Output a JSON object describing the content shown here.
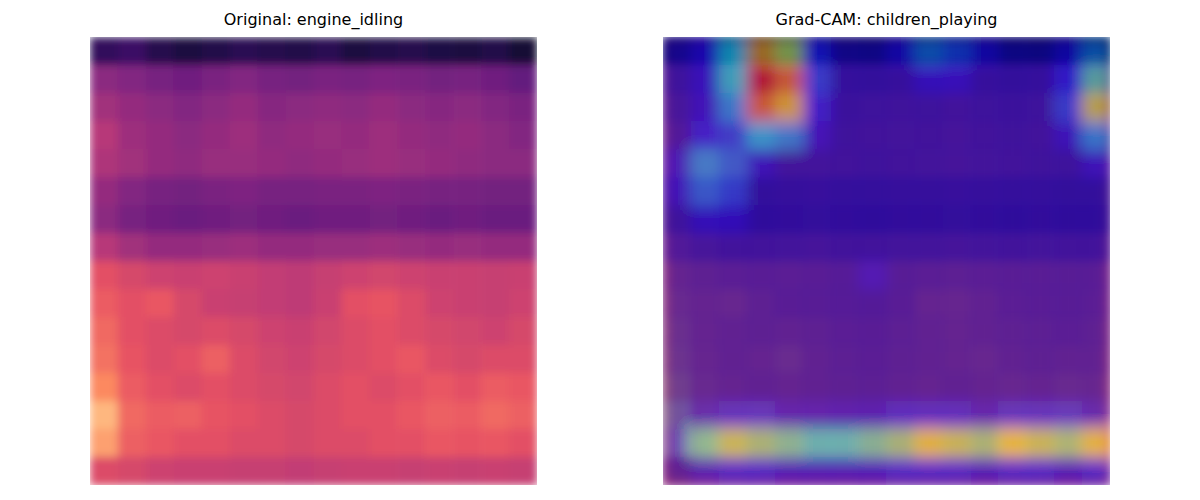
{
  "chart_data": [
    {
      "type": "heatmap",
      "title": "Original: engine_idling",
      "color": "magma",
      "zlim": [
        0,
        1
      ],
      "tick_labels": false,
      "cells": [
        [
          0.18,
          0.2,
          0.15,
          0.12,
          0.14,
          0.16,
          0.15,
          0.14,
          0.16,
          0.12,
          0.14,
          0.15,
          0.13,
          0.12,
          0.14,
          0.1
        ],
        [
          0.4,
          0.38,
          0.35,
          0.33,
          0.36,
          0.38,
          0.35,
          0.34,
          0.36,
          0.35,
          0.37,
          0.36,
          0.34,
          0.35,
          0.33,
          0.3
        ],
        [
          0.45,
          0.42,
          0.4,
          0.38,
          0.4,
          0.42,
          0.39,
          0.4,
          0.41,
          0.4,
          0.42,
          0.4,
          0.39,
          0.4,
          0.38,
          0.36
        ],
        [
          0.5,
          0.44,
          0.42,
          0.4,
          0.42,
          0.44,
          0.41,
          0.42,
          0.43,
          0.42,
          0.44,
          0.42,
          0.41,
          0.42,
          0.4,
          0.38
        ],
        [
          0.48,
          0.45,
          0.42,
          0.41,
          0.43,
          0.43,
          0.42,
          0.41,
          0.42,
          0.43,
          0.44,
          0.43,
          0.42,
          0.41,
          0.4,
          0.4
        ],
        [
          0.42,
          0.38,
          0.35,
          0.34,
          0.36,
          0.37,
          0.35,
          0.35,
          0.36,
          0.36,
          0.37,
          0.36,
          0.35,
          0.35,
          0.34,
          0.34
        ],
        [
          0.4,
          0.35,
          0.33,
          0.32,
          0.33,
          0.34,
          0.33,
          0.32,
          0.33,
          0.33,
          0.34,
          0.33,
          0.32,
          0.33,
          0.32,
          0.32
        ],
        [
          0.5,
          0.45,
          0.42,
          0.42,
          0.43,
          0.44,
          0.42,
          0.42,
          0.43,
          0.43,
          0.44,
          0.43,
          0.42,
          0.43,
          0.42,
          0.42
        ],
        [
          0.62,
          0.58,
          0.56,
          0.55,
          0.56,
          0.55,
          0.53,
          0.52,
          0.54,
          0.56,
          0.57,
          0.56,
          0.55,
          0.55,
          0.54,
          0.55
        ],
        [
          0.65,
          0.62,
          0.64,
          0.58,
          0.55,
          0.54,
          0.53,
          0.52,
          0.55,
          0.62,
          0.63,
          0.6,
          0.56,
          0.55,
          0.54,
          0.56
        ],
        [
          0.68,
          0.62,
          0.6,
          0.58,
          0.6,
          0.58,
          0.56,
          0.55,
          0.57,
          0.6,
          0.62,
          0.6,
          0.58,
          0.57,
          0.56,
          0.58
        ],
        [
          0.7,
          0.63,
          0.6,
          0.62,
          0.66,
          0.6,
          0.57,
          0.56,
          0.58,
          0.6,
          0.62,
          0.64,
          0.6,
          0.58,
          0.6,
          0.6
        ],
        [
          0.75,
          0.65,
          0.62,
          0.6,
          0.62,
          0.6,
          0.58,
          0.57,
          0.6,
          0.62,
          0.6,
          0.62,
          0.64,
          0.62,
          0.65,
          0.64
        ],
        [
          0.85,
          0.68,
          0.65,
          0.66,
          0.63,
          0.62,
          0.6,
          0.58,
          0.6,
          0.62,
          0.62,
          0.64,
          0.66,
          0.65,
          0.68,
          0.66
        ],
        [
          0.8,
          0.66,
          0.64,
          0.62,
          0.62,
          0.6,
          0.6,
          0.58,
          0.6,
          0.6,
          0.62,
          0.62,
          0.64,
          0.63,
          0.64,
          0.62
        ],
        [
          0.6,
          0.58,
          0.56,
          0.55,
          0.55,
          0.54,
          0.54,
          0.53,
          0.54,
          0.55,
          0.55,
          0.54,
          0.55,
          0.54,
          0.55,
          0.54
        ]
      ]
    },
    {
      "type": "heatmap",
      "title": "Grad-CAM: children_playing",
      "color": "jet",
      "zlim": [
        0,
        1
      ],
      "tick_labels": false,
      "cells": [
        [
          0.05,
          0.1,
          0.35,
          0.7,
          0.55,
          0.15,
          0.05,
          0.05,
          0.1,
          0.25,
          0.2,
          0.1,
          0.05,
          0.05,
          0.1,
          0.25
        ],
        [
          0.05,
          0.1,
          0.4,
          0.9,
          0.75,
          0.2,
          0.05,
          0.05,
          0.05,
          0.1,
          0.1,
          0.05,
          0.05,
          0.05,
          0.15,
          0.45
        ],
        [
          0.05,
          0.1,
          0.3,
          0.75,
          0.65,
          0.15,
          0.05,
          0.05,
          0.05,
          0.05,
          0.05,
          0.05,
          0.05,
          0.05,
          0.2,
          0.6
        ],
        [
          0.05,
          0.15,
          0.2,
          0.35,
          0.3,
          0.1,
          0.05,
          0.05,
          0.05,
          0.05,
          0.05,
          0.05,
          0.05,
          0.05,
          0.1,
          0.3
        ],
        [
          0.1,
          0.3,
          0.25,
          0.1,
          0.05,
          0.05,
          0.05,
          0.05,
          0.05,
          0.05,
          0.05,
          0.05,
          0.05,
          0.05,
          0.05,
          0.1
        ],
        [
          0.1,
          0.25,
          0.2,
          0.05,
          0.05,
          0.05,
          0.05,
          0.05,
          0.05,
          0.05,
          0.05,
          0.05,
          0.05,
          0.05,
          0.05,
          0.05
        ],
        [
          0.05,
          0.1,
          0.1,
          0.05,
          0.05,
          0.05,
          0.05,
          0.05,
          0.05,
          0.05,
          0.05,
          0.05,
          0.05,
          0.05,
          0.05,
          0.05
        ],
        [
          0.05,
          0.05,
          0.05,
          0.05,
          0.05,
          0.05,
          0.05,
          0.05,
          0.05,
          0.05,
          0.05,
          0.05,
          0.05,
          0.05,
          0.05,
          0.05
        ],
        [
          0.05,
          0.05,
          0.05,
          0.05,
          0.05,
          0.05,
          0.05,
          0.1,
          0.05,
          0.05,
          0.05,
          0.05,
          0.05,
          0.05,
          0.05,
          0.05
        ],
        [
          0.05,
          0.05,
          0.05,
          0.05,
          0.05,
          0.05,
          0.05,
          0.05,
          0.05,
          0.05,
          0.05,
          0.05,
          0.05,
          0.05,
          0.05,
          0.05
        ],
        [
          0.05,
          0.05,
          0.05,
          0.05,
          0.05,
          0.05,
          0.05,
          0.05,
          0.05,
          0.05,
          0.05,
          0.05,
          0.05,
          0.05,
          0.05,
          0.05
        ],
        [
          0.05,
          0.05,
          0.05,
          0.05,
          0.05,
          0.05,
          0.05,
          0.05,
          0.05,
          0.05,
          0.05,
          0.05,
          0.05,
          0.05,
          0.05,
          0.05
        ],
        [
          0.05,
          0.05,
          0.05,
          0.05,
          0.05,
          0.05,
          0.05,
          0.05,
          0.05,
          0.05,
          0.05,
          0.05,
          0.05,
          0.05,
          0.05,
          0.05
        ],
        [
          0.05,
          0.1,
          0.15,
          0.15,
          0.1,
          0.1,
          0.1,
          0.1,
          0.15,
          0.15,
          0.15,
          0.1,
          0.15,
          0.15,
          0.15,
          0.1
        ],
        [
          0.1,
          0.45,
          0.55,
          0.5,
          0.45,
          0.4,
          0.4,
          0.45,
          0.5,
          0.6,
          0.55,
          0.5,
          0.6,
          0.55,
          0.5,
          0.6
        ],
        [
          0.05,
          0.1,
          0.15,
          0.15,
          0.1,
          0.1,
          0.1,
          0.1,
          0.15,
          0.15,
          0.15,
          0.1,
          0.15,
          0.15,
          0.1,
          0.15
        ]
      ]
    }
  ]
}
